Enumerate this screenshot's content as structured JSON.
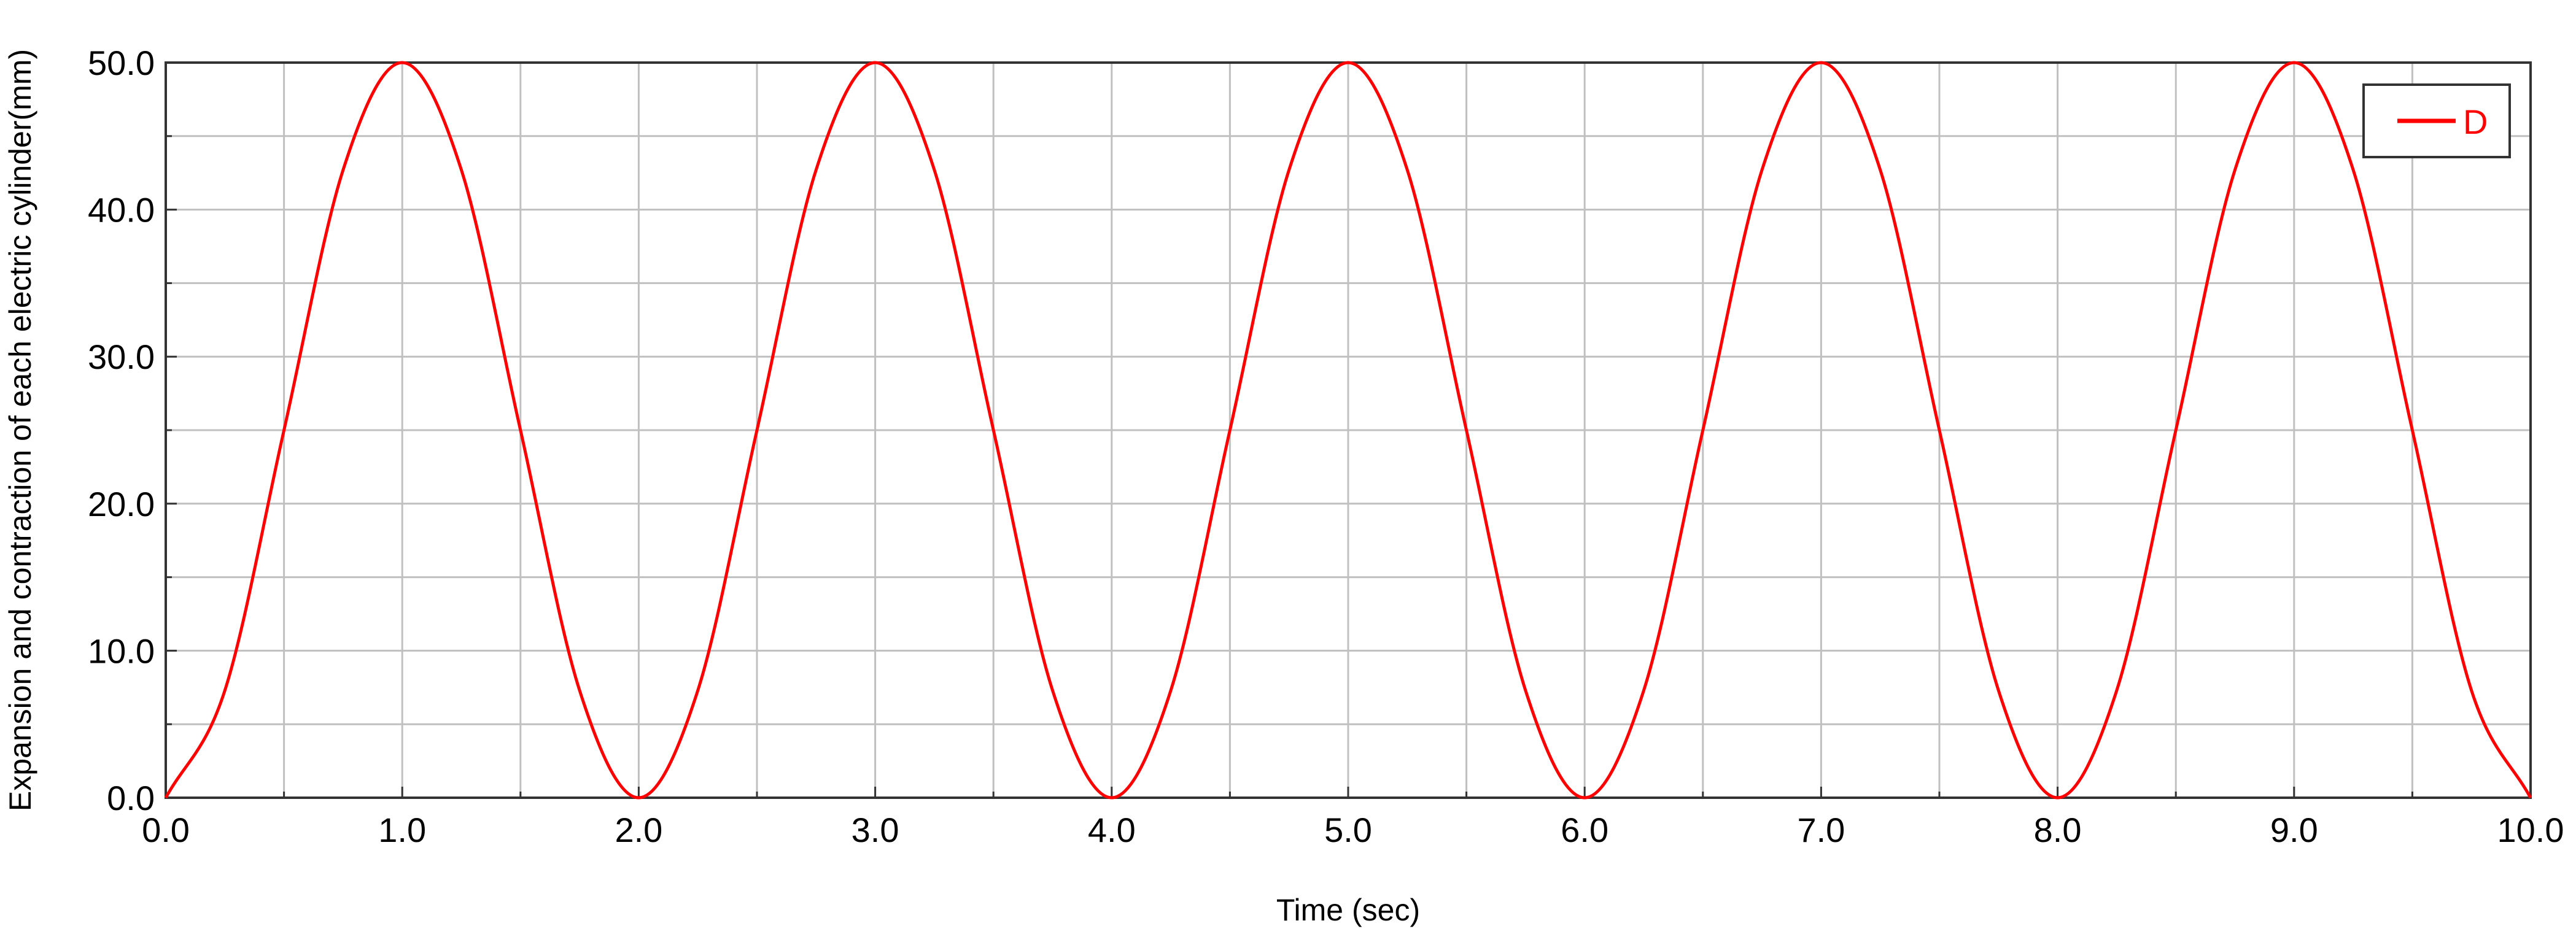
{
  "chart_data": {
    "type": "line",
    "title": "",
    "xlabel": "Time (sec)",
    "ylabel": "Expansion and contraction of each electric cylinder(mm)",
    "xlim": [
      0.0,
      10.0
    ],
    "ylim": [
      0.0,
      50.0
    ],
    "x_ticks": [
      "0.0",
      "1.0",
      "2.0",
      "3.0",
      "4.0",
      "5.0",
      "6.0",
      "7.0",
      "8.0",
      "9.0",
      "10.0"
    ],
    "y_ticks": [
      "0.0",
      "10.0",
      "20.0",
      "30.0",
      "40.0",
      "50.0"
    ],
    "x_minor_step": 0.5,
    "y_minor_step": 5.0,
    "grid": true,
    "legend_position": "top-right",
    "series": [
      {
        "name": "D",
        "color": "#ff0000",
        "x": [
          0.0,
          0.25,
          0.5,
          0.75,
          1.0,
          1.25,
          1.5,
          1.75,
          2.0,
          2.25,
          2.5,
          2.75,
          3.0,
          3.25,
          3.5,
          3.75,
          4.0,
          4.25,
          4.5,
          4.75,
          5.0,
          5.25,
          5.5,
          5.75,
          6.0,
          6.25,
          6.5,
          6.75,
          7.0,
          7.25,
          7.5,
          7.75,
          8.0,
          8.25,
          8.5,
          8.75,
          9.0,
          9.25,
          9.5,
          9.75,
          10.0
        ],
        "y": [
          0.0,
          7.3,
          25.0,
          42.7,
          50.0,
          42.7,
          25.0,
          7.3,
          0.0,
          7.3,
          25.0,
          42.7,
          50.0,
          42.7,
          25.0,
          7.3,
          0.0,
          7.3,
          25.0,
          42.7,
          50.0,
          42.7,
          25.0,
          7.3,
          0.0,
          7.3,
          25.0,
          42.7,
          50.0,
          42.7,
          25.0,
          7.3,
          0.0,
          7.3,
          25.0,
          42.7,
          50.0,
          42.7,
          25.0,
          7.3,
          0.0
        ]
      }
    ]
  }
}
